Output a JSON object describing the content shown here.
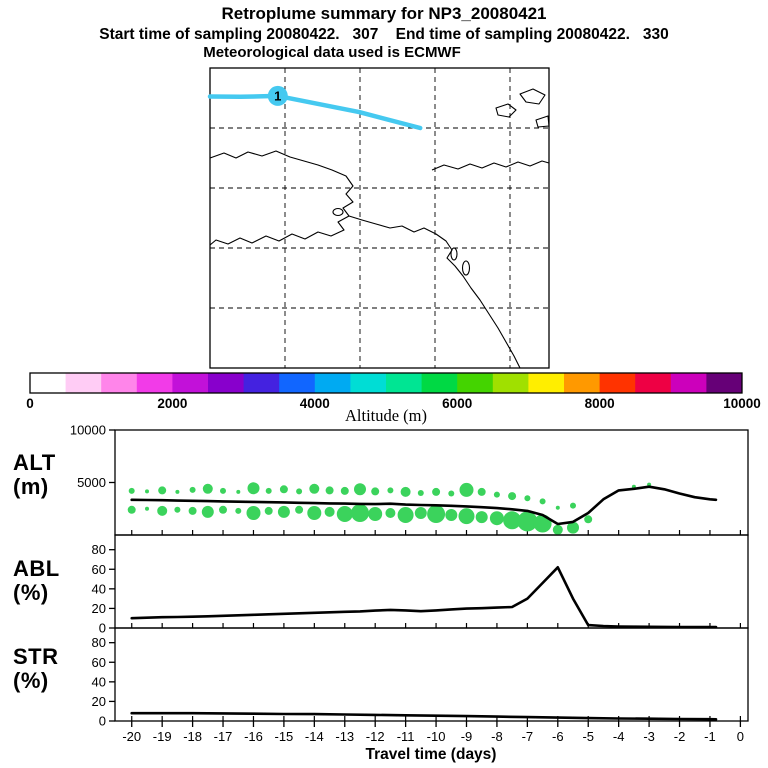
{
  "header": {
    "title": "Retroplume summary for NP3_20080421",
    "subtitle": "Start time of sampling 20080422.   307    End time of sampling 20080422.   330",
    "met_line": "Meteorological data used is ECMWF"
  },
  "xaxis": {
    "label": "Travel time (days)",
    "ticks": [
      -20,
      -19,
      -18,
      -17,
      -16,
      -15,
      -14,
      -13,
      -12,
      -11,
      -10,
      -9,
      -8,
      -7,
      -6,
      -5,
      -4,
      -3,
      -2,
      -1,
      0
    ],
    "xlim": [
      -20.55,
      0.25
    ]
  },
  "chart_data": [
    {
      "id": "trajectory-map",
      "type": "line",
      "color": "#45c9f0",
      "points_frac": [
        [
          0.0,
          0.095
        ],
        [
          0.09,
          0.096
        ],
        [
          0.2,
          0.093
        ],
        [
          0.44,
          0.147
        ],
        [
          0.62,
          0.2
        ]
      ],
      "marker": {
        "frac": [
          0.2,
          0.093
        ],
        "label": "1"
      }
    },
    {
      "id": "altitude-colorbar",
      "type": "heatmap",
      "title": "Altitude (m)",
      "range": [
        0,
        10000
      ],
      "tick_labels": [
        "0",
        "2000",
        "4000",
        "6000",
        "8000",
        "10000"
      ],
      "colors": [
        "#ffffff",
        "#ffccf5",
        "#ff85ea",
        "#f23be8",
        "#c211d9",
        "#8800cc",
        "#4422e0",
        "#1166ff",
        "#00aaf2",
        "#00ddd5",
        "#00e593",
        "#00d944",
        "#44d400",
        "#a0e000",
        "#ffee00",
        "#ff9900",
        "#ff3300",
        "#ee0044",
        "#cc00bb",
        "#660077"
      ]
    },
    {
      "id": "alt-panel",
      "type": "scatter",
      "ylabel": "ALT",
      "yunit": "(m)",
      "ylim": [
        0,
        10000
      ],
      "yticks": [
        5000,
        10000
      ],
      "line_color": "#000000",
      "bubble_color": "#3bd35c",
      "line": {
        "x": [
          -20,
          -19.5,
          -19,
          -18.5,
          -18,
          -17.5,
          -17,
          -16.5,
          -16,
          -15.5,
          -15,
          -14.5,
          -14,
          -13.5,
          -13,
          -12.5,
          -12,
          -11.5,
          -11,
          -10.5,
          -10,
          -9.5,
          -9,
          -8.5,
          -8,
          -7.5,
          -7,
          -6.5,
          -6,
          -5.5,
          -5,
          -4.5,
          -4,
          -3.5,
          -3,
          -2.5,
          -2,
          -1.5,
          -1,
          -0.8
        ],
        "y": [
          3350,
          3330,
          3310,
          3280,
          3260,
          3230,
          3200,
          3170,
          3150,
          3120,
          3100,
          3070,
          3040,
          3010,
          2990,
          2960,
          2940,
          2980,
          2900,
          2860,
          2830,
          2780,
          2720,
          2650,
          2560,
          2450,
          2300,
          1900,
          1050,
          1250,
          2100,
          3400,
          4250,
          4400,
          4600,
          4350,
          3950,
          3600,
          3400,
          3350
        ]
      },
      "bubbles": [
        [
          -20,
          4200,
          3
        ],
        [
          -19.5,
          4150,
          2
        ],
        [
          -19,
          4250,
          4
        ],
        [
          -18.5,
          4100,
          2
        ],
        [
          -18,
          4300,
          3
        ],
        [
          -17.5,
          4400,
          5
        ],
        [
          -17,
          4200,
          3
        ],
        [
          -16.5,
          4100,
          2
        ],
        [
          -16,
          4450,
          6
        ],
        [
          -15.5,
          4200,
          3
        ],
        [
          -15,
          4350,
          4
        ],
        [
          -14.5,
          4150,
          3
        ],
        [
          -14,
          4400,
          5
        ],
        [
          -13.5,
          4250,
          4
        ],
        [
          -13,
          4200,
          4
        ],
        [
          -12.5,
          4350,
          6
        ],
        [
          -12,
          4150,
          4
        ],
        [
          -11.5,
          4250,
          3
        ],
        [
          -11,
          4100,
          5
        ],
        [
          -10.5,
          4000,
          3
        ],
        [
          -10,
          4100,
          4
        ],
        [
          -9.5,
          3950,
          3
        ],
        [
          -9,
          4300,
          7
        ],
        [
          -8.5,
          4100,
          4
        ],
        [
          -8,
          3850,
          3
        ],
        [
          -7.5,
          3700,
          4
        ],
        [
          -7,
          3500,
          3
        ],
        [
          -6.5,
          3200,
          3
        ],
        [
          -6,
          2600,
          2
        ],
        [
          -5.5,
          2800,
          3
        ],
        [
          -3.5,
          4600,
          2
        ],
        [
          -3,
          4800,
          2
        ],
        [
          -20,
          2400,
          4
        ],
        [
          -19.5,
          2500,
          2
        ],
        [
          -19,
          2300,
          5
        ],
        [
          -18.5,
          2400,
          3
        ],
        [
          -18,
          2300,
          4
        ],
        [
          -17.5,
          2200,
          6
        ],
        [
          -17,
          2400,
          4
        ],
        [
          -16.5,
          2300,
          3
        ],
        [
          -16,
          2100,
          7
        ],
        [
          -15.5,
          2300,
          4
        ],
        [
          -15,
          2200,
          6
        ],
        [
          -14.5,
          2400,
          4
        ],
        [
          -14,
          2100,
          7
        ],
        [
          -13.5,
          2200,
          5
        ],
        [
          -13,
          2000,
          8
        ],
        [
          -12.5,
          2100,
          9
        ],
        [
          -12,
          2000,
          7
        ],
        [
          -11.5,
          2100,
          5
        ],
        [
          -11,
          1900,
          8
        ],
        [
          -10.5,
          2100,
          6
        ],
        [
          -10,
          2000,
          9
        ],
        [
          -9.5,
          1900,
          6
        ],
        [
          -9,
          1800,
          8
        ],
        [
          -8.5,
          1700,
          6
        ],
        [
          -8,
          1600,
          7
        ],
        [
          -7.5,
          1400,
          9
        ],
        [
          -7,
          1300,
          10
        ],
        [
          -6.5,
          1100,
          9
        ],
        [
          -6,
          500,
          5
        ],
        [
          -5.5,
          700,
          6
        ],
        [
          -5,
          1500,
          4
        ]
      ]
    },
    {
      "id": "abl-panel",
      "type": "line",
      "ylabel": "ABL",
      "yunit": "(%)",
      "ylim": [
        0,
        95
      ],
      "yticks": [
        0,
        20,
        40,
        60,
        80
      ],
      "line_color": "#000000",
      "line": {
        "x": [
          -20,
          -19.5,
          -19,
          -18.5,
          -18,
          -17.5,
          -17,
          -16.5,
          -16,
          -15.5,
          -15,
          -14.5,
          -14,
          -13.5,
          -13,
          -12.5,
          -12,
          -11.5,
          -11,
          -10.5,
          -10,
          -9.5,
          -9,
          -8.5,
          -8,
          -7.5,
          -7,
          -6.5,
          -6,
          -5.5,
          -5,
          -4.5,
          -4,
          -3.5,
          -3,
          -2.5,
          -2,
          -1.5,
          -1,
          -0.8
        ],
        "y": [
          10,
          10.5,
          11,
          11.2,
          11.5,
          12,
          12.5,
          13,
          13.5,
          14,
          14.5,
          15,
          15.5,
          16,
          16.5,
          17,
          17.8,
          18.5,
          18,
          17.2,
          18,
          19,
          19.8,
          20.2,
          20.8,
          21.5,
          30,
          46,
          62,
          30,
          3,
          2,
          1.5,
          1.3,
          1.2,
          1.1,
          1,
          1,
          1,
          1
        ]
      }
    },
    {
      "id": "str-panel",
      "type": "line",
      "ylabel": "STR",
      "yunit": "(%)",
      "ylim": [
        0,
        95
      ],
      "yticks": [
        0,
        20,
        40,
        60,
        80
      ],
      "line_color": "#000000",
      "line": {
        "x": [
          -20,
          -19,
          -18,
          -17,
          -16,
          -15,
          -14,
          -13,
          -12,
          -11,
          -10,
          -9,
          -8,
          -7,
          -6,
          -5,
          -4,
          -3,
          -2,
          -1,
          -0.8
        ],
        "y": [
          8,
          8,
          8,
          7.8,
          7.5,
          7.2,
          7,
          6.6,
          6.2,
          5.8,
          5.4,
          5,
          4.5,
          4,
          3.5,
          3,
          2.6,
          2.3,
          2,
          1.8,
          1.7
        ]
      }
    }
  ]
}
